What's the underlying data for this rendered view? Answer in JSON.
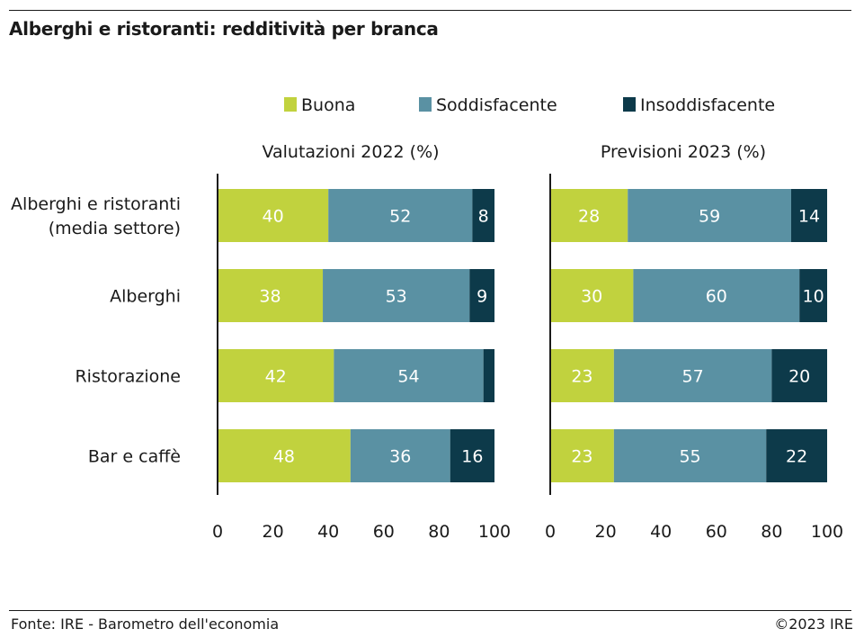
{
  "title": "Alberghi e ristoranti: redditività per branca",
  "source": "Fonte: IRE - Barometro dell'economia",
  "copyright": "©2023 IRE",
  "colors": {
    "Buona": "#c1d23e",
    "Soddisfacente": "#5a91a3",
    "Insoddisfacente": "#0d3a4a"
  },
  "chart_data": [
    {
      "type": "bar",
      "orientation": "horizontal",
      "stacked": true,
      "title": "Valutazioni 2022 (%)",
      "categories": [
        "Alberghi e ristoranti (media settore)",
        "Alberghi",
        "Ristorazione",
        "Bar e caffè"
      ],
      "series": [
        {
          "name": "Buona",
          "values": [
            40,
            38,
            42,
            48
          ]
        },
        {
          "name": "Soddisfacente",
          "values": [
            52,
            53,
            54,
            36
          ]
        },
        {
          "name": "Insoddisfacente",
          "values": [
            8,
            9,
            4,
            16
          ]
        }
      ],
      "data_labels": [
        [
          "40",
          "52",
          "8"
        ],
        [
          "38",
          "53",
          "9"
        ],
        [
          "42",
          "54",
          ""
        ],
        [
          "48",
          "36",
          "16"
        ]
      ],
      "xlim": [
        0,
        100
      ],
      "xticks": [
        0,
        20,
        40,
        60,
        80,
        100
      ],
      "legend": "top"
    },
    {
      "type": "bar",
      "orientation": "horizontal",
      "stacked": true,
      "title": "Previsioni 2023 (%)",
      "categories": [
        "Alberghi e ristoranti (media settore)",
        "Alberghi",
        "Ristorazione",
        "Bar e caffè"
      ],
      "series": [
        {
          "name": "Buona",
          "values": [
            28,
            30,
            23,
            23
          ]
        },
        {
          "name": "Soddisfacente",
          "values": [
            59,
            60,
            57,
            55
          ]
        },
        {
          "name": "Insoddisfacente",
          "values": [
            14,
            10,
            20,
            22
          ]
        }
      ],
      "data_labels": [
        [
          "28",
          "59",
          "14"
        ],
        [
          "30",
          "60",
          "10"
        ],
        [
          "23",
          "57",
          "20"
        ],
        [
          "23",
          "55",
          "22"
        ]
      ],
      "xlim": [
        0,
        100
      ],
      "xticks": [
        0,
        20,
        40,
        60,
        80,
        100
      ],
      "legend": "top"
    }
  ],
  "category_lines": [
    [
      "Alberghi e ristoranti",
      "(media settore)"
    ],
    [
      "Alberghi"
    ],
    [
      "Ristorazione"
    ],
    [
      "Bar e caffè"
    ]
  ]
}
